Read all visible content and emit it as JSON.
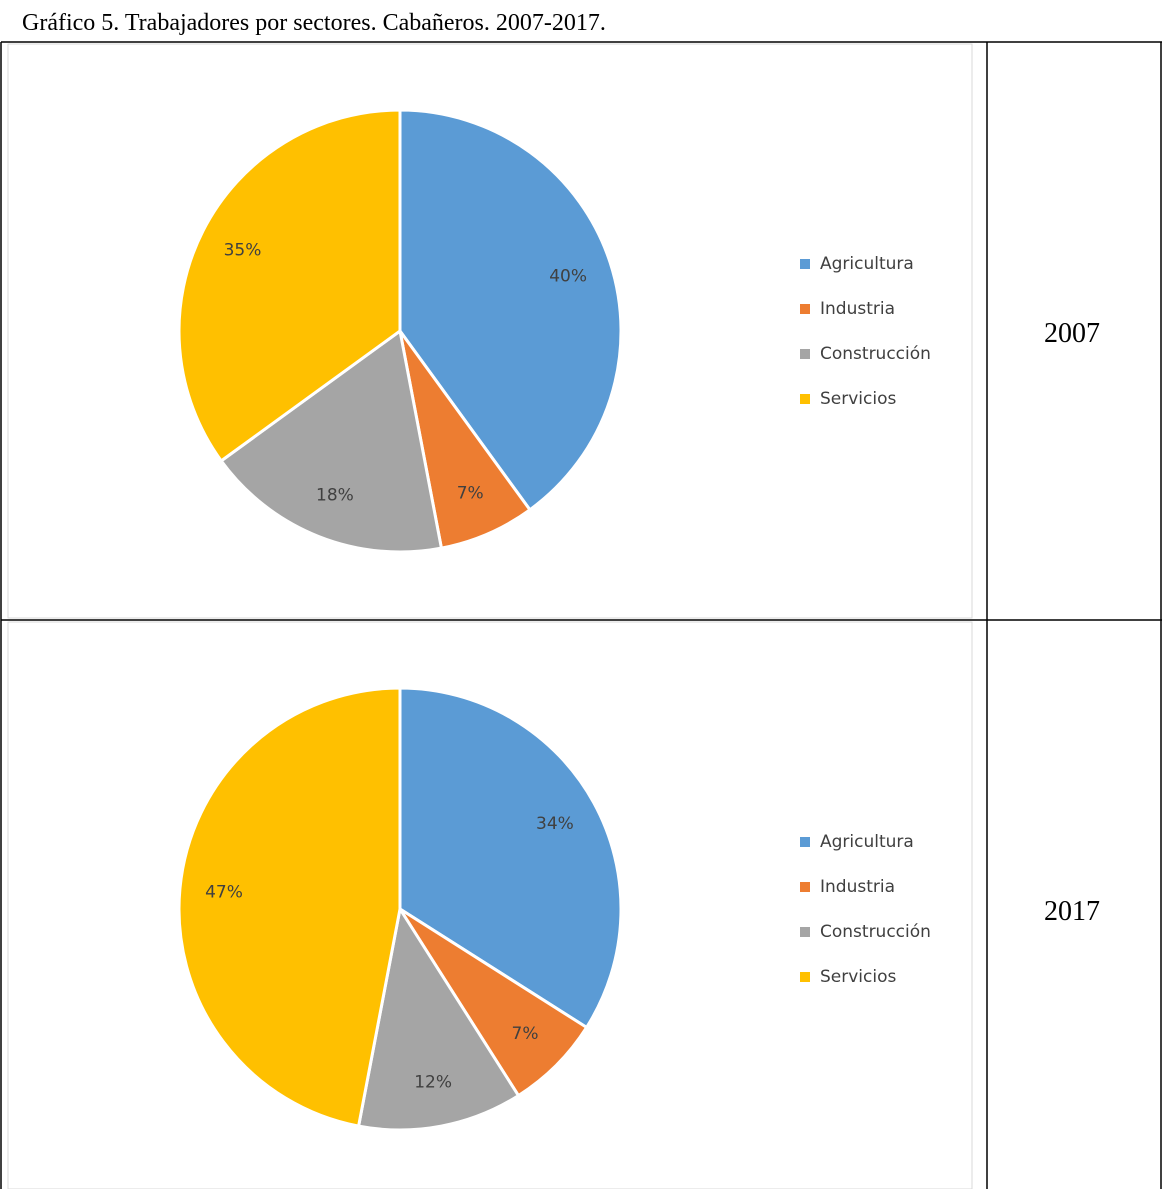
{
  "title": "Gráfico 5. Trabajadores por sectores. Cabañeros. 2007-2017.",
  "chart_data": [
    {
      "type": "pie",
      "label": "2007",
      "categories": [
        "Agricultura",
        "Industria",
        "Construcción",
        "Servicios"
      ],
      "values": [
        40,
        7,
        18,
        35
      ],
      "value_labels": [
        "40%",
        "7%",
        "18%",
        "35%"
      ],
      "colors": [
        "#5b9bd5",
        "#ed7d31",
        "#a5a5a5",
        "#ffc000"
      ]
    },
    {
      "type": "pie",
      "label": "2017",
      "categories": [
        "Agricultura",
        "Industria",
        "Construcción",
        "Servicios"
      ],
      "values": [
        34,
        7,
        12,
        47
      ],
      "value_labels": [
        "34%",
        "7%",
        "12%",
        "47%"
      ],
      "colors": [
        "#5b9bd5",
        "#ed7d31",
        "#a5a5a5",
        "#ffc000"
      ]
    }
  ]
}
